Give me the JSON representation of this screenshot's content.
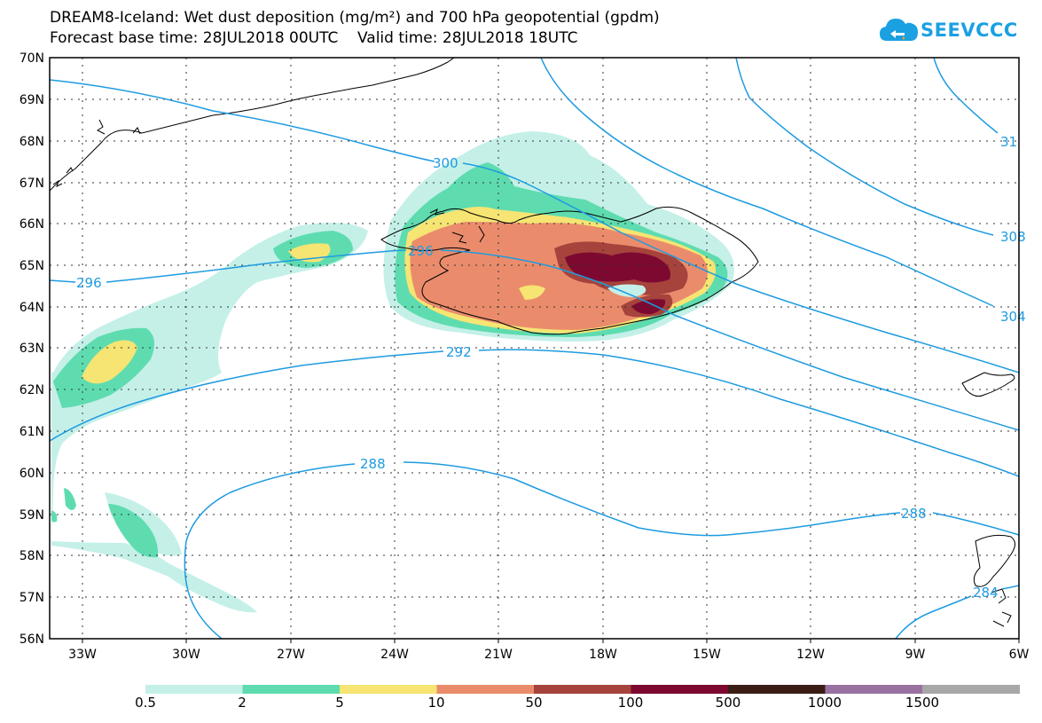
{
  "header": {
    "line1": "DREAM8-Iceland: Wet dust deposition (mg/m²) and 700 hPa geopotential (gpdm)",
    "line2": "Forecast base time: 28JUL2018 00UTC    Valid time: 28JUL2018 18UTC"
  },
  "logo": {
    "text": "SEEVCCC",
    "color": "#1ba0e2"
  },
  "map": {
    "lat_labels": [
      "70N",
      "69N",
      "68N",
      "67N",
      "66N",
      "65N",
      "64N",
      "63N",
      "62N",
      "61N",
      "60N",
      "59N",
      "58N",
      "57N",
      "56N"
    ],
    "lon_labels": [
      "33W",
      "30W",
      "27W",
      "24W",
      "21W",
      "18W",
      "15W",
      "12W",
      "9W",
      "6W"
    ],
    "contour_labels": [
      "300",
      "296",
      "296",
      "292",
      "288",
      "288",
      "284",
      "304",
      "308",
      "31"
    ],
    "contour_color": "#1e9be0"
  },
  "legend": {
    "labels": [
      "0.5",
      "2",
      "5",
      "10",
      "50",
      "100",
      "500",
      "1000",
      "1500"
    ],
    "colors": [
      "#c4f0e8",
      "#5edcb0",
      "#f6e473",
      "#ea8c6c",
      "#a6433c",
      "#7d0930",
      "#3a1e16",
      "#9a72a2",
      "#a8a8a8"
    ]
  }
}
